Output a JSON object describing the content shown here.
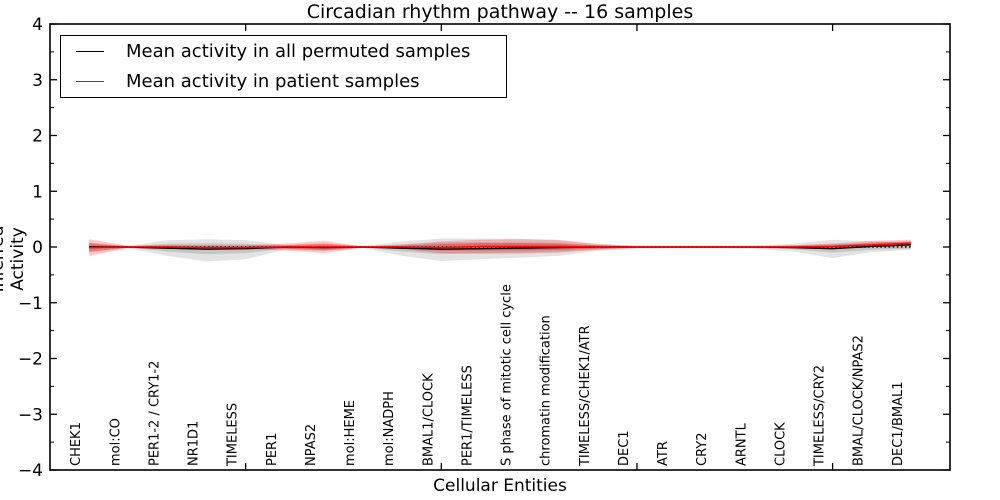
{
  "page": {
    "background": "#ffffff"
  },
  "chart_data": {
    "type": "line",
    "title": "Circadian rhythm pathway -- 16 samples",
    "xlabel": "Cellular Entities",
    "ylabel": "Inferred Activity",
    "xlim": [
      0,
      23
    ],
    "ylim": [
      -4,
      4
    ],
    "ytick_values": [
      4,
      3,
      2,
      1,
      0,
      -1,
      -2,
      -3,
      -4
    ],
    "ytick_labels": [
      "4",
      "3",
      "2",
      "1",
      "0",
      "−1",
      "−2",
      "−3",
      "−4"
    ],
    "minor_ytick_step": 0.5,
    "xtick_values": [
      5,
      10,
      15,
      20
    ],
    "grid": false,
    "legend_position": "upper-left",
    "categories": [
      "CHEK1",
      "mol:CO",
      "PER1-2 / CRY1-2",
      "NR1D1",
      "TIMELESS",
      "PER1",
      "NPAS2",
      "mol:HEME",
      "mol:NADPH",
      "BMAL1/CLOCK",
      "PER1/TIMELESS",
      "S phase of mitotic cell cycle",
      "chromatin modification",
      "TIMELESS/CHEK1/ATR",
      "DEC1",
      "ATR",
      "CRY2",
      "ARNTL",
      "CLOCK",
      "TIMELESS/CRY2",
      "BMAL/CLOCK/NPAS2",
      "DEC1/BMAL1"
    ],
    "zero_line": {
      "value": 0,
      "style": "dotted",
      "color": "#000000"
    },
    "series": [
      {
        "name": "Mean activity in all permuted samples",
        "color": "#000000",
        "values": [
          0,
          0,
          -0.02,
          -0.04,
          -0.03,
          0,
          -0.01,
          0,
          -0.02,
          -0.04,
          -0.03,
          -0.02,
          -0.01,
          0,
          0,
          0,
          0,
          0,
          -0.01,
          -0.03,
          0.01,
          0.04
        ],
        "band_outer": {
          "upper": [
            0.08,
            0.02,
            0.12,
            0.14,
            0.12,
            0.04,
            0.06,
            0.02,
            0.1,
            0.15,
            0.15,
            0.15,
            0.13,
            0.06,
            0.02,
            0.02,
            0.02,
            0.02,
            0.06,
            0.13,
            0.1,
            0.09
          ],
          "lower": [
            -0.08,
            -0.02,
            -0.16,
            -0.26,
            -0.22,
            -0.05,
            -0.07,
            -0.02,
            -0.16,
            -0.25,
            -0.22,
            -0.19,
            -0.16,
            -0.07,
            -0.03,
            -0.02,
            -0.02,
            -0.03,
            -0.08,
            -0.2,
            -0.09,
            -0.05
          ],
          "color": "#999999",
          "opacity": 0.28
        },
        "band_inner": {
          "upper": [
            0.04,
            0.01,
            0.06,
            0.07,
            0.06,
            0.02,
            0.03,
            0.01,
            0.05,
            0.08,
            0.08,
            0.08,
            0.07,
            0.03,
            0.01,
            0.01,
            0.01,
            0.01,
            0.03,
            0.06,
            0.05,
            0.05
          ],
          "lower": [
            -0.04,
            -0.01,
            -0.08,
            -0.13,
            -0.11,
            -0.03,
            -0.04,
            -0.01,
            -0.08,
            -0.13,
            -0.11,
            -0.1,
            -0.08,
            -0.04,
            -0.01,
            -0.01,
            -0.01,
            -0.01,
            -0.04,
            -0.1,
            -0.05,
            -0.03
          ],
          "color": "#999999",
          "opacity": 0.38
        }
      },
      {
        "name": "Mean activity in patient samples",
        "color": "#ff0000",
        "values": [
          -0.01,
          0,
          0,
          -0.01,
          -0.01,
          0,
          0,
          0,
          0,
          -0.01,
          0.01,
          0.01,
          0.01,
          0,
          0,
          0,
          0,
          0,
          0,
          0.01,
          0.04,
          0.07
        ],
        "band_outer": {
          "upper": [
            0.14,
            0.02,
            0.04,
            0.03,
            0.03,
            0.06,
            0.11,
            0.01,
            0.04,
            0.1,
            0.13,
            0.14,
            0.12,
            0.05,
            0.02,
            0.02,
            0.02,
            0.02,
            0.03,
            0.06,
            0.11,
            0.13
          ],
          "lower": [
            -0.16,
            -0.02,
            -0.04,
            -0.04,
            -0.04,
            -0.06,
            -0.11,
            -0.01,
            -0.04,
            -0.11,
            -0.12,
            -0.12,
            -0.1,
            -0.05,
            -0.02,
            -0.02,
            -0.02,
            -0.02,
            -0.03,
            -0.04,
            0.0,
            0.01
          ],
          "color": "#ff0000",
          "opacity": 0.22
        },
        "band_inner": {
          "upper": [
            0.07,
            0.01,
            0.02,
            0.02,
            0.02,
            0.03,
            0.06,
            0.01,
            0.02,
            0.05,
            0.07,
            0.07,
            0.06,
            0.03,
            0.01,
            0.01,
            0.01,
            0.01,
            0.02,
            0.03,
            0.08,
            0.1
          ],
          "lower": [
            -0.09,
            -0.01,
            -0.02,
            -0.02,
            -0.02,
            -0.03,
            -0.06,
            -0.01,
            -0.02,
            -0.06,
            -0.06,
            -0.06,
            -0.05,
            -0.03,
            -0.01,
            -0.01,
            -0.01,
            -0.01,
            -0.02,
            -0.02,
            0.01,
            0.04
          ],
          "color": "#ff0000",
          "opacity": 0.32
        }
      }
    ]
  }
}
